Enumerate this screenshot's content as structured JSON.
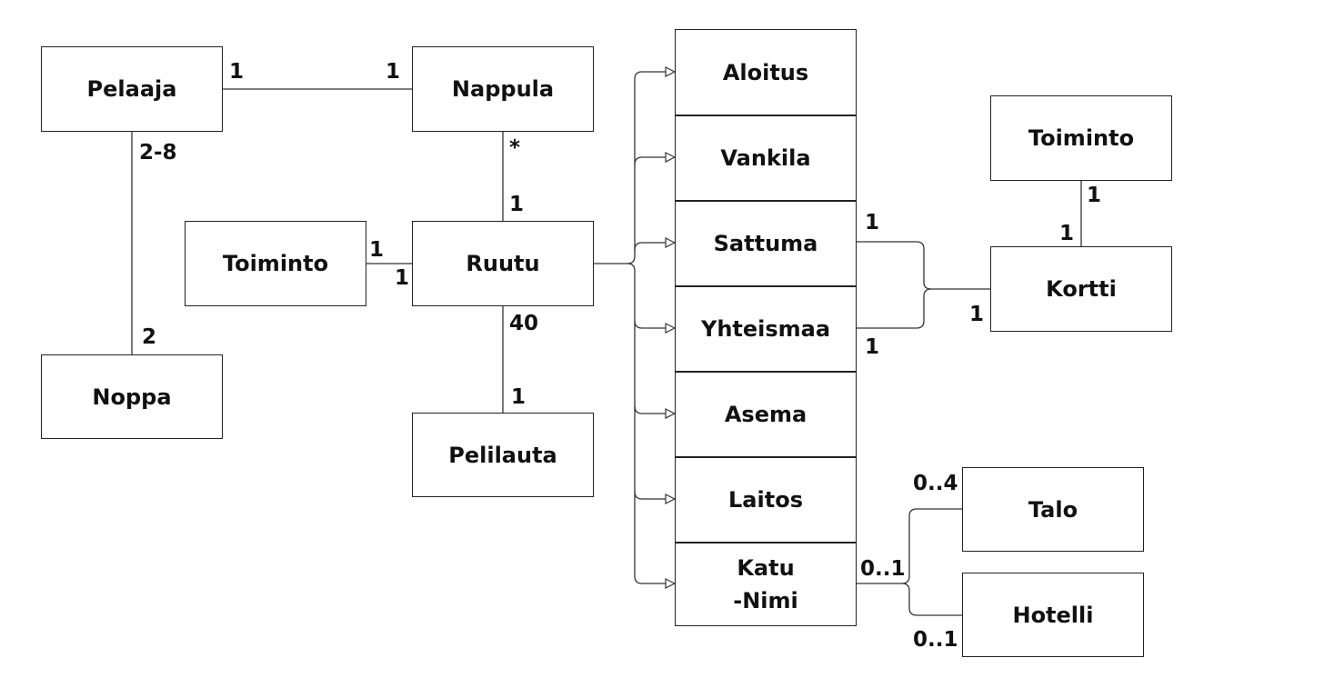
{
  "classes": {
    "pelaaja": "Pelaaja",
    "nappula": "Nappula",
    "noppa": "Noppa",
    "toiminto_left": "Toiminto",
    "ruutu": "Ruutu",
    "pelilauta": "Pelilauta",
    "toiminto_right": "Toiminto",
    "kortti": "Kortti",
    "talo": "Talo",
    "hotelli": "Hotelli"
  },
  "subtypes": [
    "Aloitus",
    "Vankila",
    "Sattuma",
    "Yhteismaa",
    "Asema",
    "Laitos",
    "Katu\n-Nimi"
  ],
  "multiplicities": {
    "pelaaja_nappula_left": "1",
    "pelaaja_nappula_right": "1",
    "pelaaja_noppa_top": "2-8",
    "pelaaja_noppa_bottom": "2",
    "nappula_ruutu_top": "*",
    "nappula_ruutu_bottom": "1",
    "toiminto_ruutu_left": "1",
    "toiminto_ruutu_right": "1",
    "ruutu_pelilauta_top": "40",
    "ruutu_pelilauta_bottom": "1",
    "sattuma_kortti": "1",
    "yhteismaa_kortti": "1",
    "kortti_side": "1",
    "toiminto_kortti_top": "1",
    "toiminto_kortti_bottom": "1",
    "katu_side": "0..1",
    "talo_mult": "0..4",
    "hotelli_mult": "0..1"
  }
}
